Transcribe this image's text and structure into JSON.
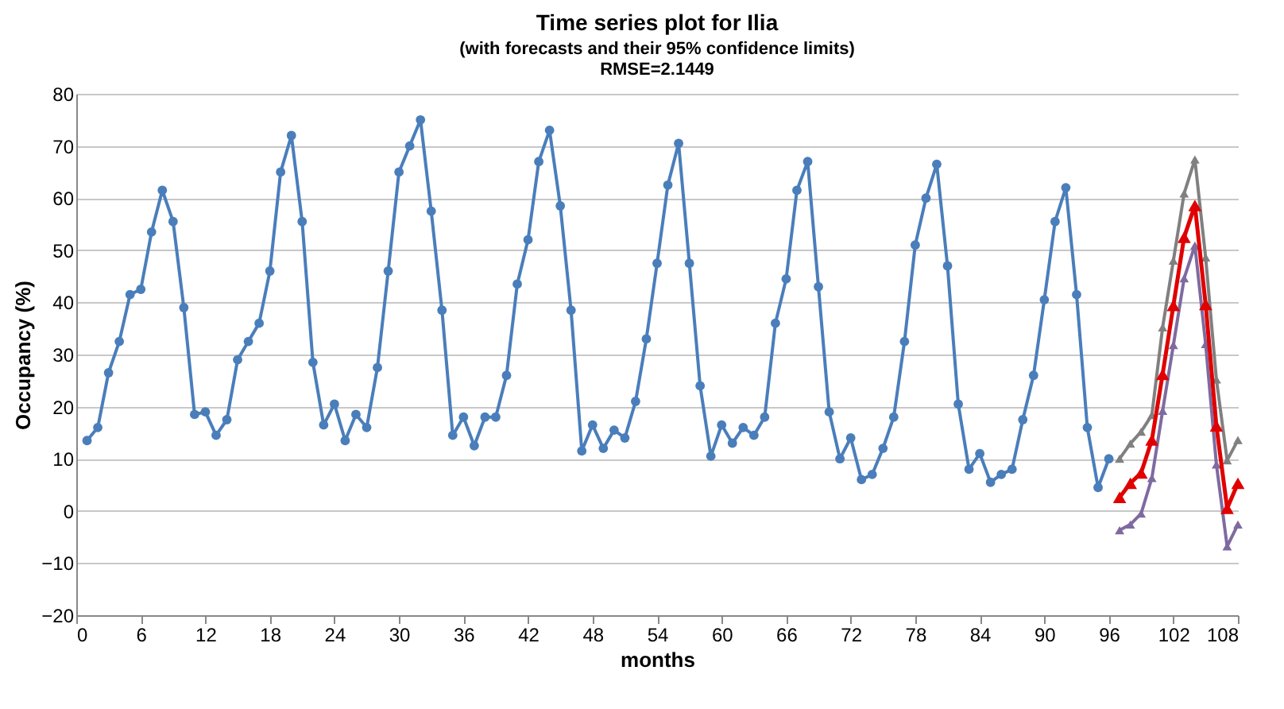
{
  "chart_data": {
    "type": "line",
    "title": "Time series plot for Ilia",
    "subtitle": "(with forecasts and their 95% confidence limits)\nRMSE=2.1449",
    "xlabel": "months",
    "ylabel": "Occupancy (%)",
    "xlim": [
      0,
      108
    ],
    "xticks": [
      0,
      6,
      12,
      18,
      24,
      30,
      36,
      42,
      48,
      54,
      60,
      66,
      72,
      78,
      84,
      90,
      96,
      102,
      108
    ],
    "ylim": [
      -20,
      80
    ],
    "yticks": [
      -20,
      -10,
      0,
      10,
      20,
      30,
      40,
      50,
      60,
      70,
      80
    ],
    "grid": "y",
    "line_style": "solid",
    "series": [
      {
        "color": "#4a7ebb",
        "marker": "circle",
        "x": [
          1,
          2,
          3,
          4,
          5,
          6,
          7,
          8,
          9,
          10,
          11,
          12,
          13,
          14,
          15,
          16,
          17,
          18,
          19,
          20,
          21,
          22,
          23,
          24,
          25,
          26,
          27,
          28,
          29,
          30,
          31,
          32,
          33,
          34,
          35,
          36,
          37,
          38,
          39,
          40,
          41,
          42,
          43,
          44,
          45,
          46,
          47,
          48,
          49,
          50,
          51,
          52,
          53,
          54,
          55,
          56,
          57,
          58,
          59,
          60,
          61,
          62,
          63,
          64,
          65,
          66,
          67,
          68,
          69,
          70,
          71,
          72,
          73,
          74,
          75,
          76,
          77,
          78,
          79,
          80,
          81,
          82,
          83,
          84,
          85,
          86,
          87,
          88,
          89,
          90,
          91,
          92,
          93,
          94,
          95,
          96
        ],
        "values": [
          13.5,
          16,
          26.5,
          32.5,
          41.5,
          42.5,
          53.5,
          61.5,
          55.5,
          39,
          18.5,
          19,
          14.5,
          17.5,
          29,
          32.5,
          36,
          46,
          65,
          72,
          55.5,
          28.5,
          16.5,
          20.5,
          13.5,
          18.5,
          16,
          27.5,
          46,
          65,
          70,
          75,
          57.5,
          38.5,
          14.5,
          18,
          12.5,
          18,
          18,
          26,
          43.5,
          52,
          67,
          73,
          58.5,
          38.5,
          11.5,
          16.5,
          12,
          15.5,
          14,
          21,
          33,
          47.5,
          62.5,
          70.5,
          47.5,
          24,
          10.5,
          16.5,
          13,
          16,
          14.5,
          18,
          36,
          44.5,
          61.5,
          67,
          43,
          19,
          10,
          14,
          6,
          7,
          12,
          18,
          32.5,
          51,
          60,
          66.5,
          47,
          20.5,
          8,
          11,
          5.5,
          7,
          8,
          17.5,
          26,
          40.5,
          55.5,
          62,
          41.5,
          16,
          4.5,
          10
        ]
      },
      {
        "color": "#808080",
        "marker": "triangle",
        "x": [
          97,
          98,
          99,
          100,
          101,
          102,
          103,
          104,
          105,
          106,
          107,
          108
        ],
        "values": [
          10,
          12.9,
          15.2,
          18.4,
          35.2,
          48,
          60.9,
          67.4,
          48.6,
          25.2,
          9.7,
          13.6
        ]
      },
      {
        "color": "#7f6aa0",
        "marker": "triangle",
        "x": [
          97,
          98,
          99,
          100,
          101,
          102,
          103,
          104,
          105,
          106,
          107,
          108
        ],
        "values": [
          -3.7,
          -2.6,
          -0.5,
          6.3,
          19.2,
          31.8,
          44.6,
          50.9,
          32,
          8.9,
          -6.8,
          -2.6
        ]
      },
      {
        "color": "#e00000",
        "marker": "triangle",
        "x": [
          97,
          98,
          99,
          100,
          101,
          102,
          103,
          104,
          105,
          106,
          107,
          108
        ],
        "values": [
          2.6,
          5.3,
          7.3,
          13.6,
          26.2,
          39.4,
          52.5,
          58.6,
          39.6,
          16.3,
          0.5,
          5.3
        ]
      }
    ]
  }
}
